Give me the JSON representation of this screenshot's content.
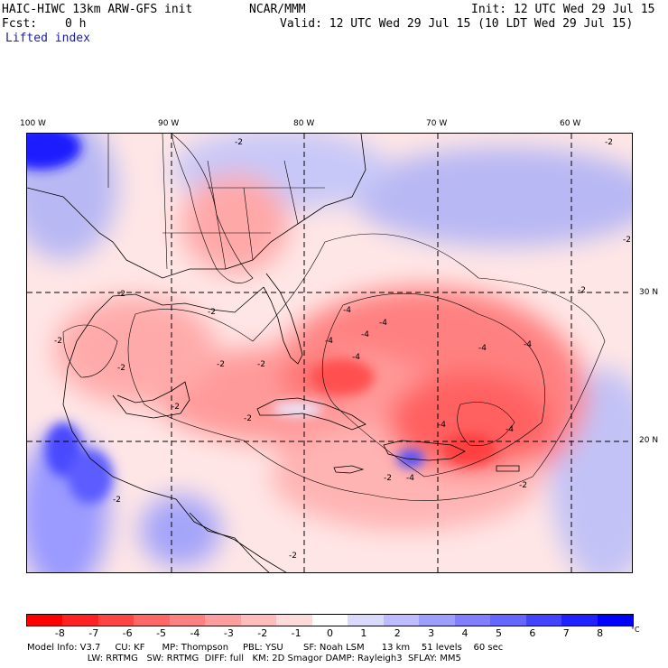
{
  "header": {
    "model_title": "HAIC-HIWC 13km ARW-GFS init",
    "org": "NCAR/MMM",
    "init": "Init: 12 UTC Wed 29 Jul 15",
    "fcst_label": "Fcst:",
    "fcst_value": "0 h",
    "valid": "Valid: 12 UTC Wed 29 Jul 15 (10 LDT Wed 29 Jul 15)",
    "field": "Lifted index"
  },
  "axes": {
    "lon_labels": [
      "100 W",
      "90 W",
      "80 W",
      "70 W",
      "60 W"
    ],
    "lat_labels": [
      "30 N",
      "20 N"
    ]
  },
  "contour_labels": [
    "-2",
    "-2",
    "-2",
    "-2",
    "-2",
    "-2",
    "-2",
    "-2",
    "-2",
    "-2",
    "-2",
    "-2",
    "-2",
    "-2",
    "-2",
    "-2",
    "-4",
    "-4",
    "-4",
    "-4",
    "-4",
    "-4",
    "-4",
    "-4",
    "-4",
    "-4"
  ],
  "colorbar": {
    "labels": [
      "-8",
      "-7",
      "-6",
      "-5",
      "-4",
      "-3",
      "-2",
      "-1",
      "0",
      "1",
      "2",
      "3",
      "4",
      "5",
      "6",
      "7",
      "8"
    ],
    "unit": "°C",
    "colors": [
      "#ff0000",
      "#ff2222",
      "#ff4444",
      "#ff6666",
      "#ff8080",
      "#ff9e9e",
      "#ffbcbc",
      "#ffdada",
      "#ffffff",
      "#dadaff",
      "#bcbcff",
      "#9e9eff",
      "#8080ff",
      "#6666ff",
      "#4444ff",
      "#2222ff",
      "#0000ff"
    ]
  },
  "colors": {
    "neg_strong": "#ff4a4a",
    "neg_mid": "#ff8a8a",
    "neg_light": "#ffc8c8",
    "pos_light": "#d8d8ff",
    "pos_mid": "#9a9aff",
    "pos_strong": "#3a3aff"
  },
  "footer": {
    "line1": "Model Info: V3.7     CU: KF      MP: Thompson     PBL: YSU       SF: Noah LSM      13 km    51 levels    60 sec",
    "line2": "                     LW: RRTMG   SW: RRTMG  DIFF: full   KM: 2D Smagor DAMP: Rayleigh3  SFLAY: MM5"
  }
}
